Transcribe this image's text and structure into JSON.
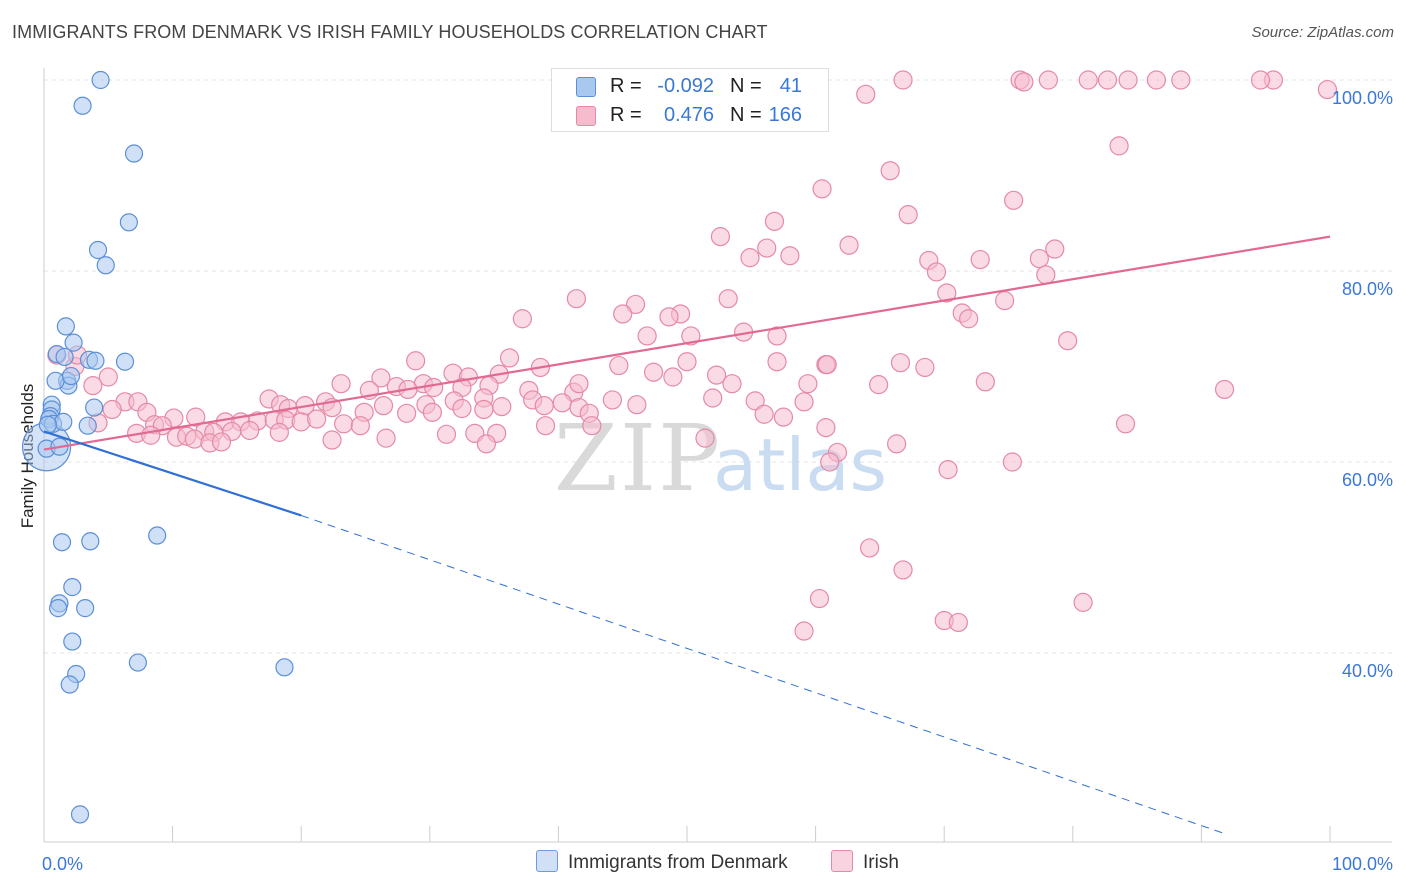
{
  "title": "IMMIGRANTS FROM DENMARK VS IRISH FAMILY HOUSEHOLDS CORRELATION CHART",
  "source": "Source: ZipAtlas.com",
  "watermark": {
    "zip": "ZIP",
    "atlas": "atlas"
  },
  "legend_top": {
    "rows": [
      {
        "r_label": "R =",
        "r_value": "-0.092",
        "n_label": "N =",
        "n_value": "41",
        "color": "#a9c8f0",
        "border": "#5b8fd8"
      },
      {
        "r_label": "R =",
        "r_value": "0.476",
        "n_label": "N =",
        "n_value": "166",
        "color": "#f6bccd",
        "border": "#e58aa6"
      }
    ]
  },
  "legend_bottom": [
    {
      "label": "Immigrants from Denmark",
      "color": "#cfe0f7",
      "border": "#6b9be0"
    },
    {
      "label": "Irish",
      "color": "#f9d3df",
      "border": "#e58aa6"
    }
  ],
  "chart_data": {
    "type": "scatter",
    "title": "IMMIGRANTS FROM DENMARK VS IRISH FAMILY HOUSEHOLDS CORRELATION CHART",
    "xlabel": "",
    "ylabel": "Family Households",
    "xlim": [
      0,
      100
    ],
    "ylim": [
      21,
      101
    ],
    "x_tick_labels": [
      "0.0%",
      "100.0%"
    ],
    "y_ticks": [
      40,
      60,
      80,
      100
    ],
    "y_tick_labels": [
      "40.0%",
      "60.0%",
      "80.0%",
      "100.0%"
    ],
    "grid": true,
    "colors": {
      "denmark_fill": "#a9c8f0",
      "denmark_stroke": "#5b8fd8",
      "denmark_line": "#2f6fd6",
      "irish_fill": "#f6bccd",
      "irish_stroke": "#e58aa6",
      "irish_line": "#e06a93",
      "grid": "#e4e4e4",
      "tick_label": "#3a78d8"
    },
    "series": [
      {
        "name": "Immigrants from Denmark",
        "trend": {
          "x0": 0,
          "y0": 63.2,
          "x1": 20,
          "y1": 54.4,
          "dashed_to_x": 100,
          "dashed_to_y": 18.4
        },
        "points": [
          [
            4.4,
            100.0
          ],
          [
            3.0,
            97.3
          ],
          [
            7.0,
            92.3
          ],
          [
            6.6,
            85.1
          ],
          [
            4.2,
            82.2
          ],
          [
            4.8,
            80.6
          ],
          [
            1.7,
            74.2
          ],
          [
            2.3,
            72.5
          ],
          [
            3.5,
            70.7
          ],
          [
            1.0,
            71.3
          ],
          [
            1.6,
            71.0
          ],
          [
            1.8,
            68.5
          ],
          [
            1.9,
            68.0
          ],
          [
            0.9,
            68.5
          ],
          [
            0.6,
            66.0
          ],
          [
            0.6,
            65.5
          ],
          [
            0.5,
            64.8
          ],
          [
            0.4,
            64.5
          ],
          [
            3.9,
            65.7
          ],
          [
            0.7,
            64.0
          ],
          [
            1.5,
            64.2
          ],
          [
            3.4,
            63.8
          ],
          [
            0.3,
            63.9
          ],
          [
            0.2,
            61.4
          ],
          [
            1.2,
            61.6
          ],
          [
            6.3,
            70.5
          ],
          [
            1.4,
            51.6
          ],
          [
            3.6,
            51.7
          ],
          [
            8.8,
            52.3
          ],
          [
            2.2,
            46.9
          ],
          [
            1.2,
            45.2
          ],
          [
            1.1,
            44.7
          ],
          [
            3.2,
            44.7
          ],
          [
            2.2,
            41.2
          ],
          [
            2.5,
            37.8
          ],
          [
            2.0,
            36.7
          ],
          [
            7.3,
            39.0
          ],
          [
            18.7,
            38.5
          ],
          [
            2.8,
            23.1
          ],
          [
            4.0,
            70.6
          ],
          [
            2.1,
            69.0
          ]
        ]
      },
      {
        "name": "Irish",
        "trend": {
          "x0": 0,
          "y0": 61.3,
          "x1": 100,
          "y1": 83.6
        },
        "points": [
          [
            59.7,
            100.0
          ],
          [
            66.8,
            100.0
          ],
          [
            75.9,
            100.0
          ],
          [
            76.2,
            99.8
          ],
          [
            78.1,
            100.0
          ],
          [
            81.2,
            100.0
          ],
          [
            82.7,
            100.0
          ],
          [
            84.3,
            100.0
          ],
          [
            86.5,
            100.0
          ],
          [
            88.4,
            100.0
          ],
          [
            95.6,
            100.0
          ],
          [
            94.6,
            100.0
          ],
          [
            99.8,
            99.0
          ],
          [
            63.9,
            98.5
          ],
          [
            83.6,
            93.1
          ],
          [
            65.8,
            90.5
          ],
          [
            60.5,
            88.6
          ],
          [
            75.4,
            87.4
          ],
          [
            67.2,
            85.9
          ],
          [
            56.8,
            85.2
          ],
          [
            52.6,
            83.6
          ],
          [
            62.6,
            82.7
          ],
          [
            56.2,
            82.4
          ],
          [
            78.6,
            82.3
          ],
          [
            58.0,
            81.6
          ],
          [
            77.4,
            81.3
          ],
          [
            54.9,
            81.4
          ],
          [
            72.8,
            81.2
          ],
          [
            68.8,
            81.1
          ],
          [
            69.4,
            79.9
          ],
          [
            77.9,
            79.6
          ],
          [
            70.2,
            77.7
          ],
          [
            53.2,
            77.1
          ],
          [
            74.7,
            76.9
          ],
          [
            41.4,
            77.1
          ],
          [
            46.0,
            76.5
          ],
          [
            45.0,
            75.5
          ],
          [
            49.5,
            75.5
          ],
          [
            48.6,
            75.2
          ],
          [
            37.2,
            75.0
          ],
          [
            71.4,
            75.6
          ],
          [
            71.9,
            75.0
          ],
          [
            54.4,
            73.6
          ],
          [
            57.0,
            73.2
          ],
          [
            46.9,
            73.2
          ],
          [
            50.3,
            73.2
          ],
          [
            79.6,
            72.7
          ],
          [
            36.2,
            70.9
          ],
          [
            44.7,
            70.1
          ],
          [
            50.0,
            70.5
          ],
          [
            60.8,
            70.2
          ],
          [
            66.6,
            70.4
          ],
          [
            28.9,
            70.6
          ],
          [
            60.9,
            70.2
          ],
          [
            68.5,
            69.9
          ],
          [
            38.6,
            69.9
          ],
          [
            31.8,
            69.3
          ],
          [
            33.0,
            68.9
          ],
          [
            35.4,
            69.2
          ],
          [
            47.4,
            69.4
          ],
          [
            52.3,
            69.1
          ],
          [
            57.0,
            70.5
          ],
          [
            26.2,
            68.8
          ],
          [
            25.3,
            67.5
          ],
          [
            29.5,
            68.2
          ],
          [
            23.1,
            68.2
          ],
          [
            27.4,
            67.9
          ],
          [
            28.3,
            67.6
          ],
          [
            30.3,
            67.8
          ],
          [
            32.5,
            67.8
          ],
          [
            34.6,
            68.0
          ],
          [
            37.7,
            67.5
          ],
          [
            41.2,
            67.3
          ],
          [
            41.6,
            68.2
          ],
          [
            48.9,
            68.9
          ],
          [
            53.5,
            68.2
          ],
          [
            59.4,
            68.2
          ],
          [
            64.9,
            68.1
          ],
          [
            73.2,
            68.4
          ],
          [
            91.8,
            67.6
          ],
          [
            5.0,
            68.9
          ],
          [
            3.8,
            68.0
          ],
          [
            2.4,
            70.0
          ],
          [
            2.6,
            71.2
          ],
          [
            1.0,
            71.2
          ],
          [
            17.5,
            66.6
          ],
          [
            21.9,
            66.3
          ],
          [
            26.4,
            65.9
          ],
          [
            29.7,
            66.0
          ],
          [
            31.9,
            66.4
          ],
          [
            34.2,
            66.7
          ],
          [
            38.0,
            66.5
          ],
          [
            40.3,
            66.2
          ],
          [
            44.2,
            66.5
          ],
          [
            46.1,
            66.0
          ],
          [
            52.0,
            66.7
          ],
          [
            55.3,
            66.4
          ],
          [
            59.1,
            66.3
          ],
          [
            6.3,
            66.3
          ],
          [
            7.3,
            66.3
          ],
          [
            18.4,
            66.0
          ],
          [
            19.0,
            65.6
          ],
          [
            20.3,
            65.9
          ],
          [
            22.4,
            65.7
          ],
          [
            24.9,
            65.2
          ],
          [
            28.2,
            65.1
          ],
          [
            30.2,
            65.2
          ],
          [
            32.5,
            65.6
          ],
          [
            34.2,
            65.5
          ],
          [
            35.6,
            65.8
          ],
          [
            38.9,
            65.9
          ],
          [
            41.6,
            65.7
          ],
          [
            42.4,
            65.1
          ],
          [
            56.0,
            65.0
          ],
          [
            57.5,
            64.7
          ],
          [
            5.3,
            65.5
          ],
          [
            8.0,
            65.2
          ],
          [
            10.1,
            64.6
          ],
          [
            11.8,
            64.7
          ],
          [
            14.1,
            64.2
          ],
          [
            15.3,
            64.2
          ],
          [
            16.6,
            64.3
          ],
          [
            17.9,
            64.4
          ],
          [
            18.8,
            64.4
          ],
          [
            20.0,
            64.2
          ],
          [
            21.2,
            64.5
          ],
          [
            23.3,
            64.0
          ],
          [
            24.6,
            63.8
          ],
          [
            39.0,
            63.8
          ],
          [
            42.6,
            63.8
          ],
          [
            60.8,
            63.6
          ],
          [
            84.1,
            64.0
          ],
          [
            4.2,
            64.1
          ],
          [
            8.6,
            63.9
          ],
          [
            9.2,
            63.8
          ],
          [
            12.5,
            63.2
          ],
          [
            13.2,
            63.1
          ],
          [
            14.6,
            63.2
          ],
          [
            16.0,
            63.3
          ],
          [
            18.3,
            63.1
          ],
          [
            7.2,
            63.0
          ],
          [
            8.3,
            62.8
          ],
          [
            10.3,
            62.6
          ],
          [
            11.1,
            62.7
          ],
          [
            11.7,
            62.4
          ],
          [
            26.6,
            62.5
          ],
          [
            31.3,
            62.9
          ],
          [
            33.5,
            63.0
          ],
          [
            35.2,
            63.0
          ],
          [
            51.4,
            62.5
          ],
          [
            12.9,
            62.0
          ],
          [
            13.8,
            62.1
          ],
          [
            22.4,
            62.3
          ],
          [
            34.4,
            61.9
          ],
          [
            66.3,
            61.9
          ],
          [
            61.7,
            61.0
          ],
          [
            70.3,
            59.2
          ],
          [
            75.3,
            60.0
          ],
          [
            61.1,
            60.0
          ],
          [
            64.2,
            51.0
          ],
          [
            66.8,
            48.7
          ],
          [
            60.3,
            45.7
          ],
          [
            80.8,
            45.3
          ],
          [
            59.1,
            42.3
          ],
          [
            70.0,
            43.4
          ],
          [
            71.1,
            43.2
          ]
        ]
      }
    ]
  }
}
